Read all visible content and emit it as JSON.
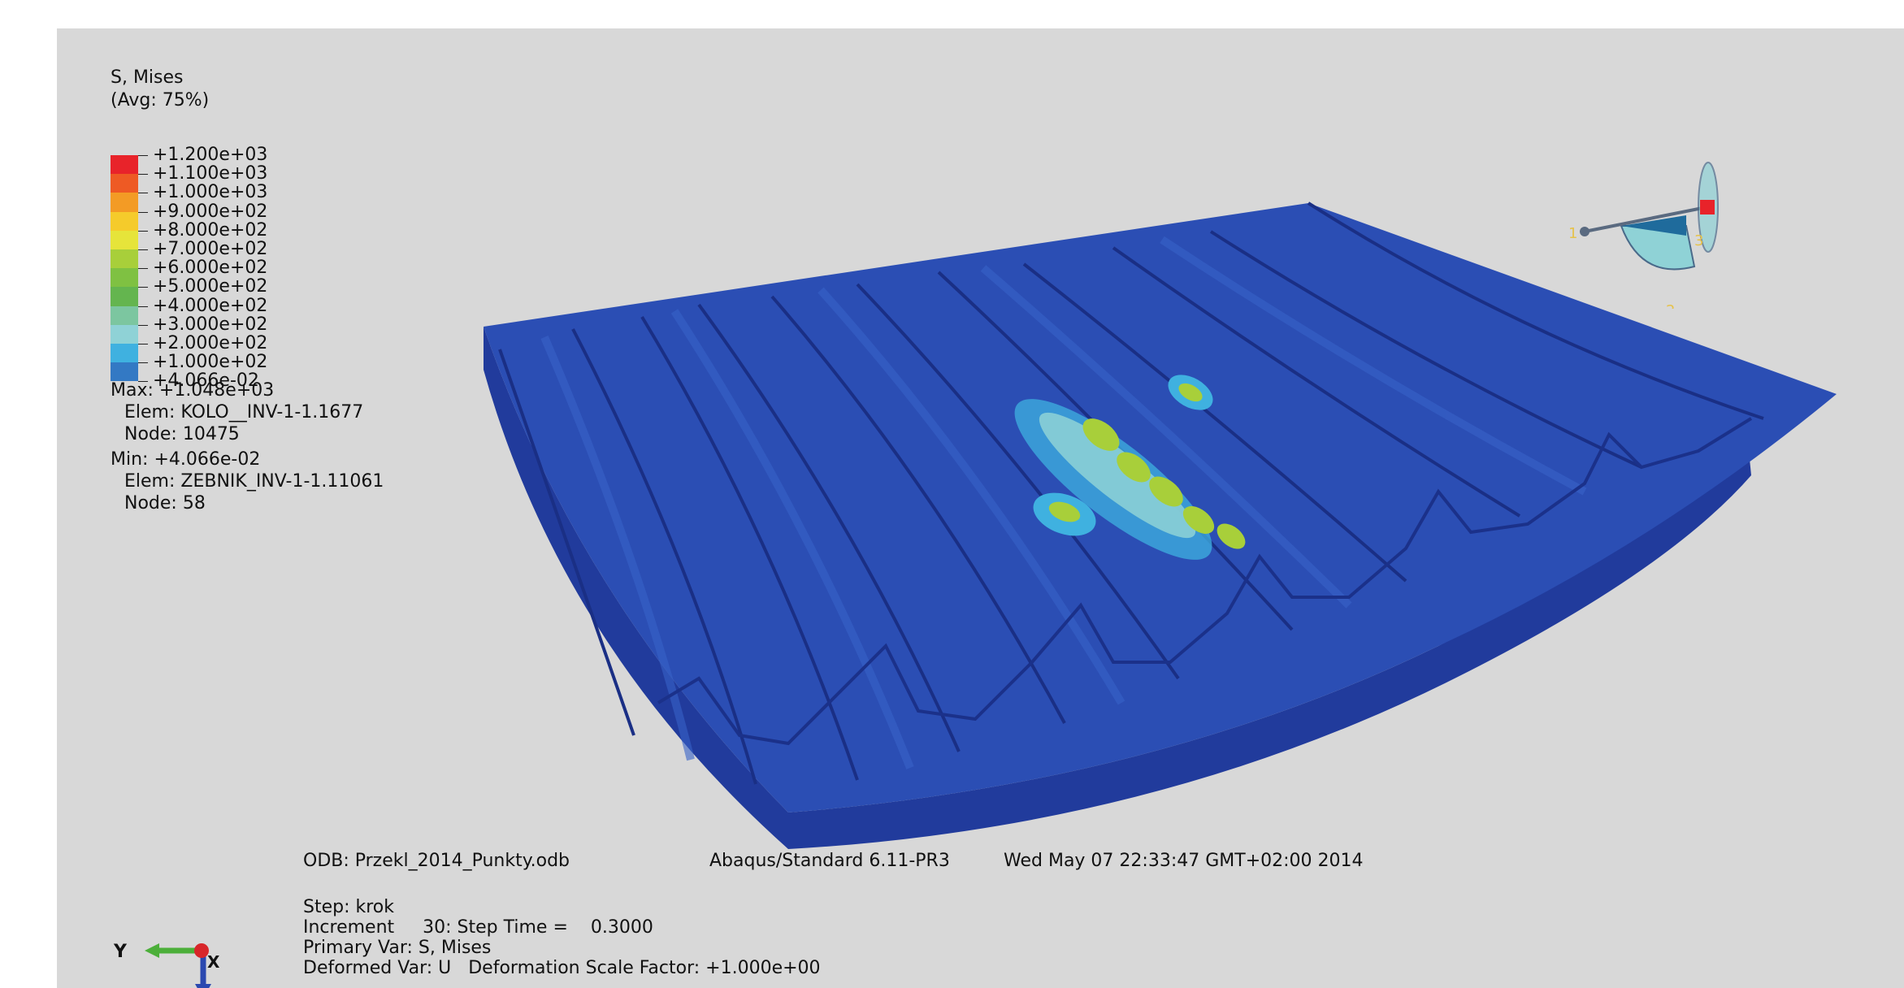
{
  "legend": {
    "title": "S, Mises",
    "subtitle": "(Avg: 75%)",
    "levels": [
      {
        "label": "+1.200e+03",
        "color": "#e8232a"
      },
      {
        "label": "+1.100e+03",
        "color": "#ee5a24"
      },
      {
        "label": "+1.000e+03",
        "color": "#f39b25"
      },
      {
        "label": "+9.000e+02",
        "color": "#f5cb2b"
      },
      {
        "label": "+8.000e+02",
        "color": "#e6e43a"
      },
      {
        "label": "+7.000e+02",
        "color": "#a8cf3a"
      },
      {
        "label": "+6.000e+02",
        "color": "#7fc142"
      },
      {
        "label": "+5.000e+02",
        "color": "#64b54f"
      },
      {
        "label": "+4.000e+02",
        "color": "#7cc6a0"
      },
      {
        "label": "+3.000e+02",
        "color": "#8fd2d6"
      },
      {
        "label": "+2.000e+02",
        "color": "#3fb1e0"
      },
      {
        "label": "+1.000e+02",
        "color": "#3379c4"
      },
      {
        "label": "+4.066e-02",
        "color": "#2a48a8"
      }
    ]
  },
  "extremes": {
    "max_line": "Max: +1.048e+03",
    "max_elem": "Elem: KOLO__INV-1-1.1677",
    "max_node": "Node: 10475",
    "min_line": "Min: +4.066e-02",
    "min_elem": "Elem: ZEBNIK_INV-1-1.11061",
    "min_node": "Node: 58"
  },
  "footer": {
    "odb": "ODB: Przekl_2014_Punkty.odb",
    "solver": "Abaqus/Standard 6.11-PR3",
    "date": "Wed May 07 22:33:47 GMT+02:00 2014",
    "step": "Step: krok",
    "increment": "Increment     30: Step Time =    0.3000",
    "primary_var": "Primary Var: S, Mises",
    "deformed_var": "Deformed Var: U   Deformation Scale Factor: +1.000e+00"
  },
  "triad": {
    "y_label": "Y",
    "x_label": "X",
    "view_labels": [
      "1",
      "2",
      "3"
    ]
  },
  "colors": {
    "background": "#d8d8d8",
    "model_dark": "#223a9c",
    "model_mid": "#2a4fb6",
    "model_light": "#3560c8",
    "hot_cyan": "#3fb1e0",
    "hot_green": "#a8cf3a"
  }
}
